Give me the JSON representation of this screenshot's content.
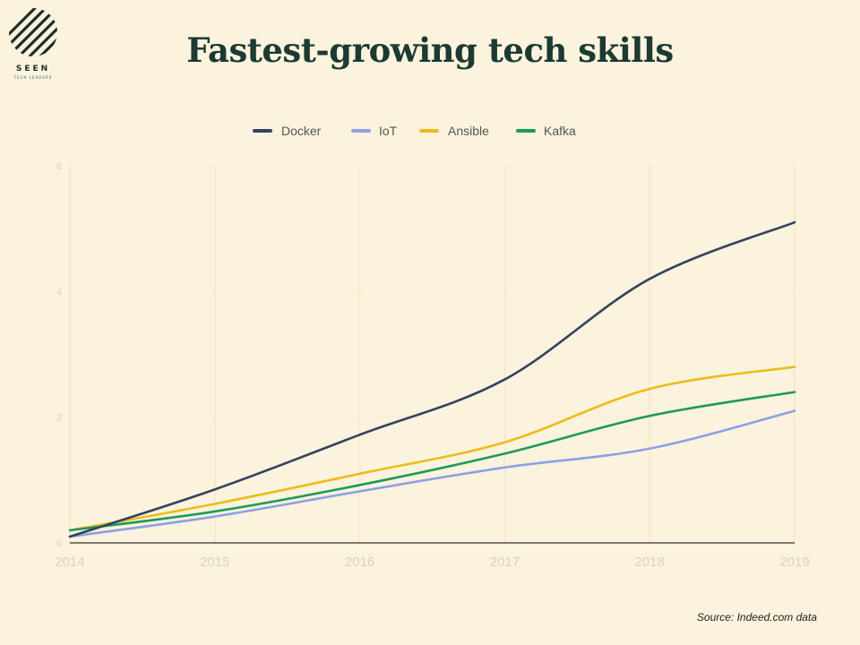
{
  "brand": {
    "name": "SEEN",
    "tagline": "TECH LEADERS"
  },
  "title": "Fastest-growing tech skills",
  "source_note": "Source: Indeed.com data",
  "colors": {
    "background": "#fbf3dd",
    "title": "#1c3a33",
    "Docker": "#35425f",
    "IoT": "#8da0e6",
    "Ansible": "#ecbc1a",
    "Kafka": "#1d9a5a"
  },
  "chart_data": {
    "type": "line",
    "title": "Fastest-growing tech skills",
    "xlabel": "",
    "ylabel": "",
    "x": [
      "2014",
      "2015",
      "2016",
      "2017",
      "2018",
      "2019"
    ],
    "y_ticks": [
      "0",
      "2",
      "4",
      "6"
    ],
    "ylim": [
      0,
      6
    ],
    "grid": true,
    "legend_position": "top",
    "series": [
      {
        "name": "Docker",
        "values": [
          0.1,
          0.85,
          1.72,
          2.6,
          4.2,
          5.1
        ]
      },
      {
        "name": "IoT",
        "values": [
          0.1,
          0.42,
          0.82,
          1.2,
          1.5,
          2.1
        ]
      },
      {
        "name": "Ansible",
        "values": [
          0.2,
          0.62,
          1.1,
          1.6,
          2.45,
          2.8
        ]
      },
      {
        "name": "Kafka",
        "values": [
          0.2,
          0.5,
          0.92,
          1.42,
          2.02,
          2.4
        ]
      }
    ]
  }
}
